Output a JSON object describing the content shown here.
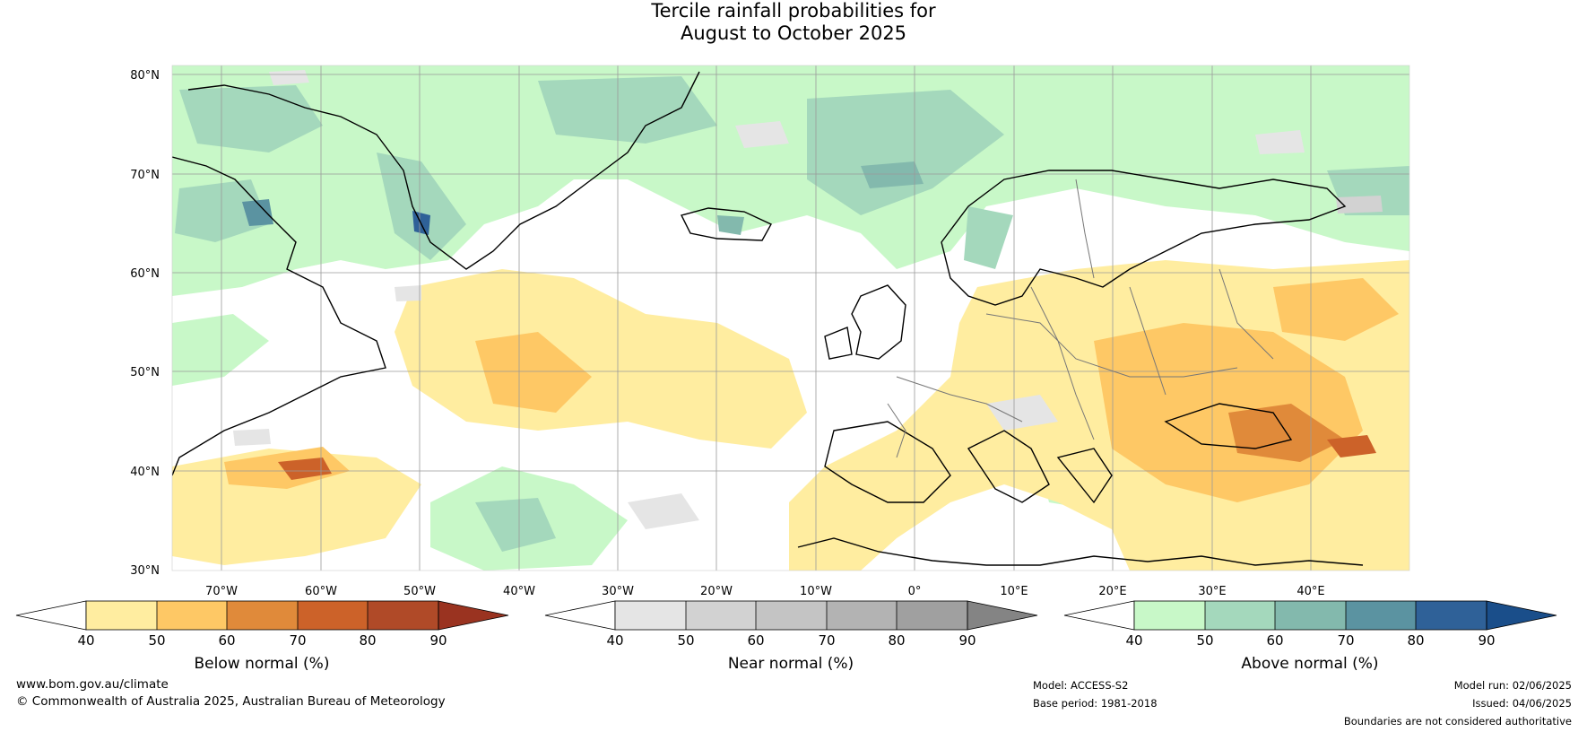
{
  "title": {
    "line1": "Tercile rainfall probabilities for",
    "line2": "August to October 2025"
  },
  "map": {
    "lat_labels": [
      "80°N",
      "70°N",
      "60°N",
      "50°N",
      "40°N",
      "30°N"
    ],
    "lon_labels": [
      "70°W",
      "60°W",
      "50°W",
      "40°W",
      "30°W",
      "20°W",
      "10°W",
      "0°",
      "10°E",
      "20°E",
      "30°E",
      "40°E"
    ]
  },
  "colorbars": [
    {
      "label": "Below normal (%)",
      "ticks": [
        "40",
        "50",
        "60",
        "70",
        "80",
        "90"
      ],
      "colors": [
        "#ffeda0",
        "#fec865",
        "#e08a3a",
        "#cc6229",
        "#b04a28"
      ],
      "extend_low": "#ffffff",
      "extend_high": "#9a3320"
    },
    {
      "label": "Near normal (%)",
      "ticks": [
        "40",
        "50",
        "60",
        "70",
        "80",
        "90"
      ],
      "colors": [
        "#e5e5e5",
        "#d2d2d2",
        "#c4c4c4",
        "#b3b3b3",
        "#a0a0a0"
      ],
      "extend_low": "#ffffff",
      "extend_high": "#848484"
    },
    {
      "label": "Above normal (%)",
      "ticks": [
        "40",
        "50",
        "60",
        "70",
        "80",
        "90"
      ],
      "colors": [
        "#c8f8c8",
        "#a4d8bc",
        "#83b9ad",
        "#5b93a1",
        "#2f6198"
      ],
      "extend_low": "#ffffff",
      "extend_high": "#1a4e8a"
    }
  ],
  "footer": {
    "url": "www.bom.gov.au/climate",
    "copyright": "© Commonwealth of Australia 2025, Australian Bureau of Meteorology",
    "model": "Model: ACCESS-S2",
    "base_period": "Base period: 1981-2018",
    "model_run": "Model run: 02/06/2025",
    "issued": "Issued: 04/06/2025",
    "disclaimer": "Boundaries are not considered authoritative"
  }
}
